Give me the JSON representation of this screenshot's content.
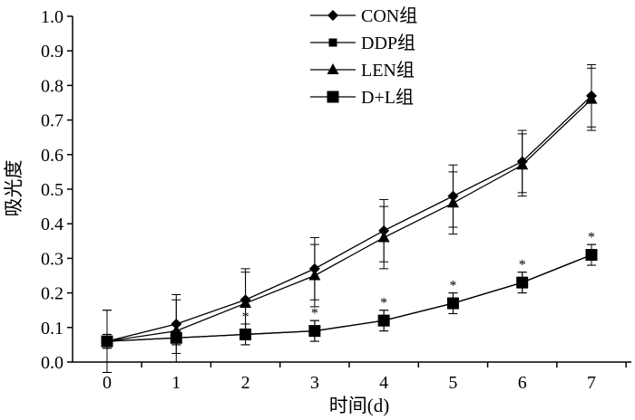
{
  "chart_data": {
    "type": "line",
    "xlabel": "时间(d)",
    "ylabel": "吸光度",
    "x": [
      0,
      1,
      2,
      3,
      4,
      5,
      6,
      7
    ],
    "xlim": [
      0,
      7
    ],
    "ylim": [
      0,
      1.0
    ],
    "yticks": [
      "0.0",
      "0.1",
      "0.2",
      "0.3",
      "0.4",
      "0.5",
      "0.6",
      "0.7",
      "0.8",
      "0.9",
      "1.0"
    ],
    "xticks": [
      "0",
      "1",
      "2",
      "3",
      "4",
      "5",
      "6",
      "7"
    ],
    "grid": false,
    "legend_position": "top-center",
    "significance_mark": "*",
    "series": [
      {
        "name": "CON组",
        "marker": "diamond",
        "values": [
          0.06,
          0.11,
          0.18,
          0.27,
          0.38,
          0.48,
          0.58,
          0.77
        ],
        "errors": [
          0.09,
          0.085,
          0.09,
          0.09,
          0.09,
          0.09,
          0.09,
          0.09
        ]
      },
      {
        "name": "DDP组",
        "marker": "small-square",
        "values": [
          0.06,
          0.07,
          0.08,
          0.09,
          0.12,
          0.17,
          0.23,
          0.31
        ],
        "errors": [
          0.02,
          0.02,
          0.03,
          0.03,
          0.03,
          0.03,
          0.03,
          0.03
        ]
      },
      {
        "name": "LEN组",
        "marker": "triangle",
        "values": [
          0.06,
          0.09,
          0.17,
          0.25,
          0.36,
          0.46,
          0.57,
          0.76
        ],
        "errors": [
          0.09,
          0.09,
          0.09,
          0.09,
          0.09,
          0.09,
          0.09,
          0.09
        ]
      },
      {
        "name": "D+L组",
        "marker": "large-square",
        "values": [
          0.06,
          0.07,
          0.08,
          0.09,
          0.12,
          0.17,
          0.23,
          0.31
        ],
        "errors": [
          0.02,
          0.02,
          0.03,
          0.03,
          0.03,
          0.03,
          0.03,
          0.03
        ],
        "significant_points": [
          2,
          3,
          4,
          5,
          6,
          7
        ]
      }
    ]
  }
}
